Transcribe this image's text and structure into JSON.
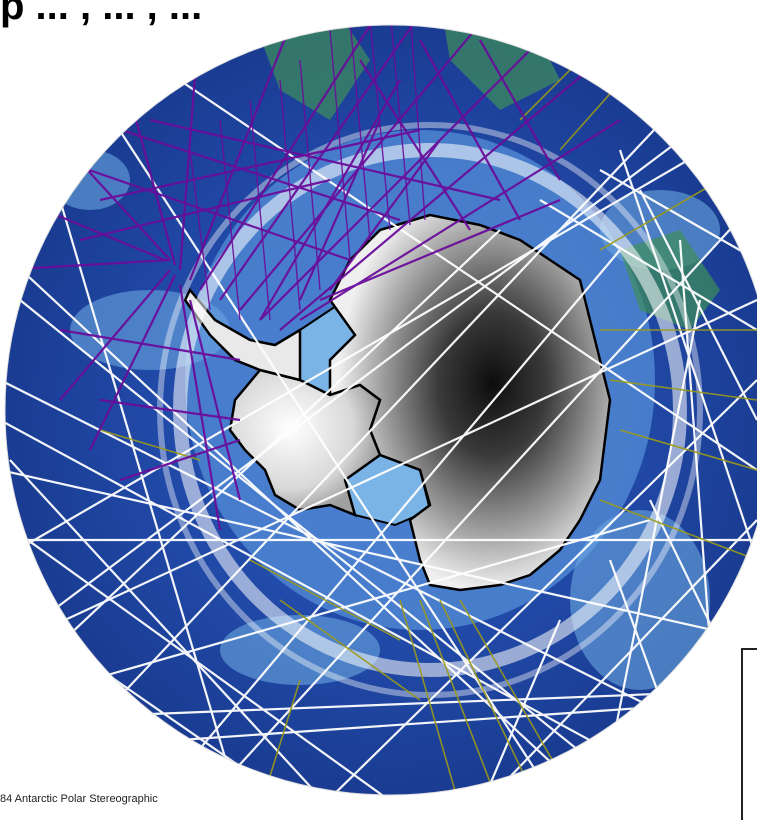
{
  "title": "p ... , ... , ...",
  "projection_label": "84 Antarctic Polar Stereographic",
  "map": {
    "type": "polar-stereographic-map",
    "region": "Antarctica / Southern Ocean",
    "legend_visible": "partial (frame only, cropped)"
  },
  "colors": {
    "ocean_deep": "#1b3f9e",
    "ocean_mid": "#2f63c4",
    "ocean_shelf": "#6aa6df",
    "ice_shelf": "#7ab3e6",
    "land_low": "#f4f4f4",
    "land_high": "#111111",
    "track_white": "#ffffff",
    "track_olive": "#9b9a1a",
    "track_purple": "#6a0d9b",
    "coastline": "#000000"
  }
}
